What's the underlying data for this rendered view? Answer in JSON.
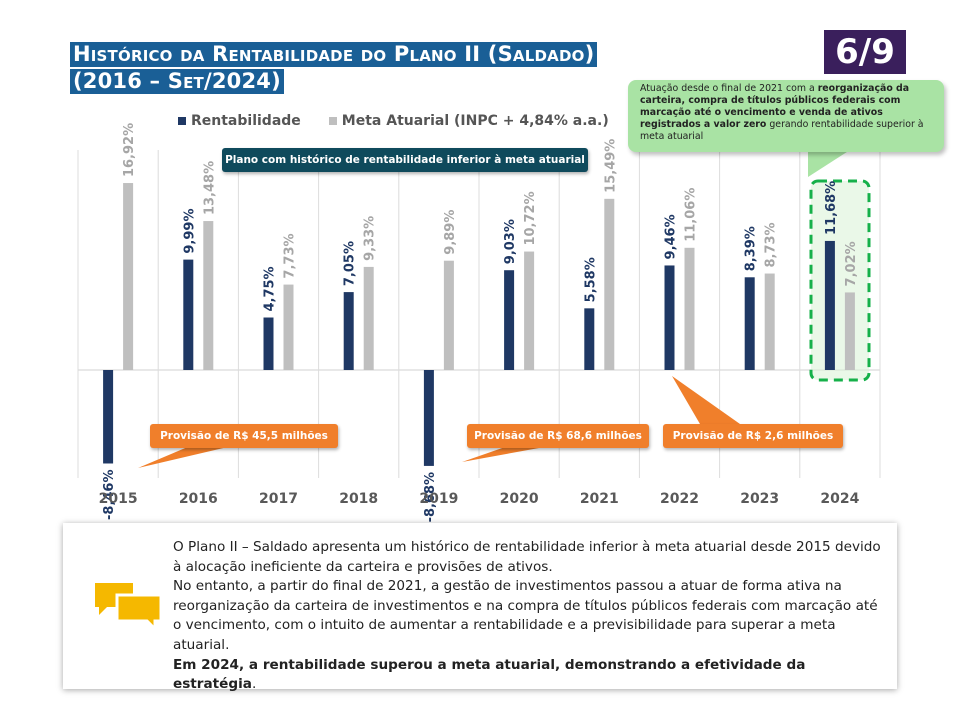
{
  "title": {
    "line1": "Histórico da Rentabilidade do Plano II (Saldado)",
    "line2": "(2016 – Set/2024)"
  },
  "page_badge": "6/9",
  "legend": {
    "rentabilidade": "Rentabilidade",
    "meta": "Meta Atuarial (INPC + 4,84% a.a.)"
  },
  "colors": {
    "rentabilidade": "#1f3864",
    "meta": "#bfbfbf",
    "title_bg": "#1a5f96",
    "badge_bg": "#3a1f5c",
    "orange": "#f07f2b",
    "green_callout": "#a9e3a4",
    "green_dash": "#16b04a",
    "banner_bg": "#0f4a5c"
  },
  "callout_top": {
    "pre": "Atuação desde o final de 2021 com a ",
    "bold": "reorganização da carteira, compra de títulos públicos federais com marcação até o vencimento e venda de ativos registrados a valor zero",
    "post": " gerando rentabilidade superior à meta atuarial"
  },
  "banner": "Plano com histórico de rentabilidade inferior à meta atuarial",
  "provisions": [
    "Provisão de R$ 45,5 milhões",
    "Provisão de R$ 68,6 milhões",
    "Provisão de R$ 2,6 milhões"
  ],
  "chart_data": {
    "type": "bar",
    "categories": [
      "2015",
      "2016",
      "2017",
      "2018",
      "2019",
      "2020",
      "2021",
      "2022",
      "2023",
      "2024"
    ],
    "series": [
      {
        "name": "Rentabilidade",
        "values": [
          -8.46,
          9.99,
          4.75,
          7.05,
          -8.68,
          9.03,
          5.58,
          9.46,
          8.39,
          11.68
        ],
        "labels": [
          "-8,46%",
          "9,99%",
          "4,75%",
          "7,05%",
          "-8,68%",
          "9,03%",
          "5,58%",
          "9,46%",
          "8,39%",
          "11,68%"
        ]
      },
      {
        "name": "Meta Atuarial (INPC + 4,84% a.a.)",
        "values": [
          16.92,
          13.48,
          7.73,
          9.33,
          9.89,
          10.72,
          15.49,
          11.06,
          8.73,
          7.02
        ],
        "labels": [
          "16,92%",
          "13,48%",
          "7,73%",
          "9,33%",
          "9,89%",
          "10,72%",
          "15,49%",
          "11,06%",
          "8,73%",
          "7,02%"
        ]
      }
    ],
    "legend_position": "top",
    "highlight_category": "2024",
    "grid": "vertical separators"
  },
  "bottom": {
    "p1": "O Plano II – Saldado apresenta um histórico de rentabilidade inferior à meta atuarial desde 2015 devido à alocação ineficiente da carteira e provisões de ativos.",
    "p2": "No entanto, a partir do final de 2021, a gestão de investimentos passou a atuar de forma ativa na reorganização da carteira de investimentos e na compra de títulos públicos federais com marcação até o vencimento, com o intuito de aumentar a rentabilidade e a previsibilidade para superar a meta atuarial.",
    "p3": "Em 2024, a rentabilidade superou a meta atuarial, demonstrando a efetividade da estratégia",
    "p3_end": "."
  }
}
